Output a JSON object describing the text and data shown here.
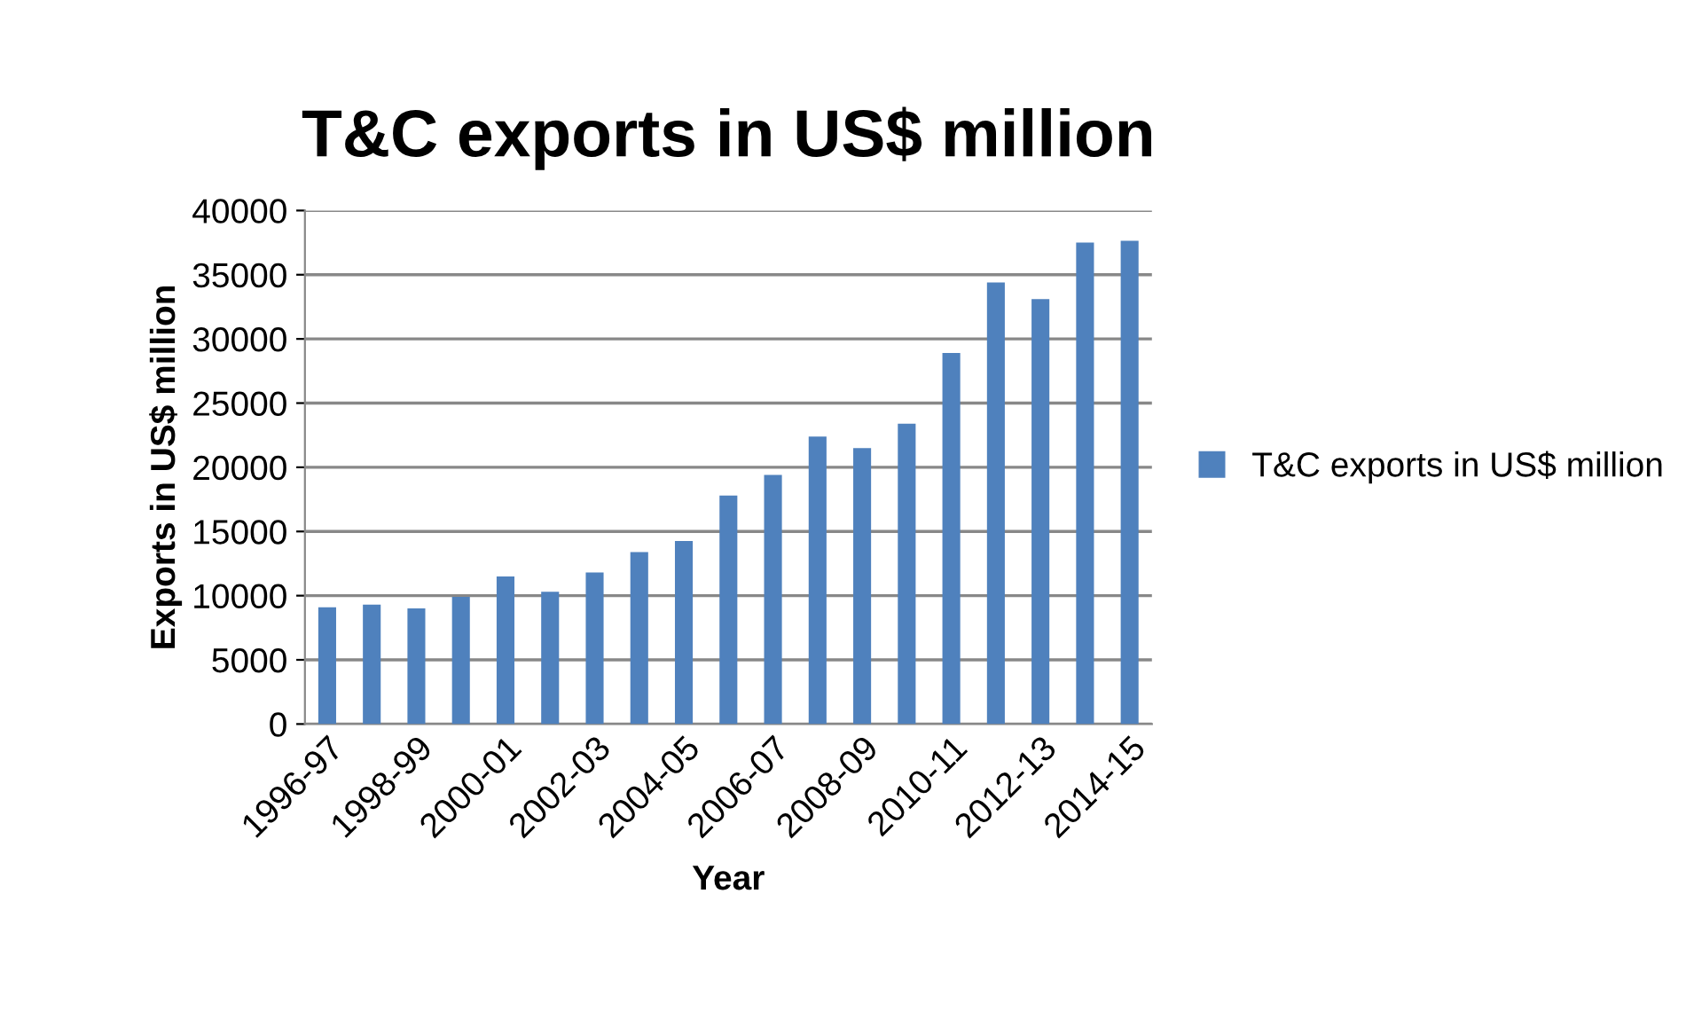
{
  "chart_data": {
    "type": "bar",
    "title": "T&C exports in US$ million",
    "xlabel": "Year",
    "ylabel": "Exports in US$ million",
    "categories": [
      "1996-97",
      null,
      "1998-99",
      null,
      "2000-01",
      null,
      "2002-03",
      null,
      "2004-05",
      null,
      "2006-07",
      null,
      "2008-09",
      null,
      "2010-11",
      null,
      "2012-13",
      null,
      "2014-15"
    ],
    "series": [
      {
        "name": "T&C exports in US$ million",
        "color": "#4f81bd",
        "values": [
          9100,
          9300,
          9000,
          9900,
          11500,
          10300,
          11800,
          13400,
          14250,
          17800,
          19400,
          22400,
          21500,
          23400,
          28900,
          34400,
          33100,
          37500,
          37650
        ]
      }
    ],
    "ylim": [
      0,
      40000
    ],
    "yticks": [
      0,
      5000,
      10000,
      15000,
      20000,
      25000,
      30000,
      35000,
      40000
    ],
    "grid": "y",
    "legend": "right"
  }
}
